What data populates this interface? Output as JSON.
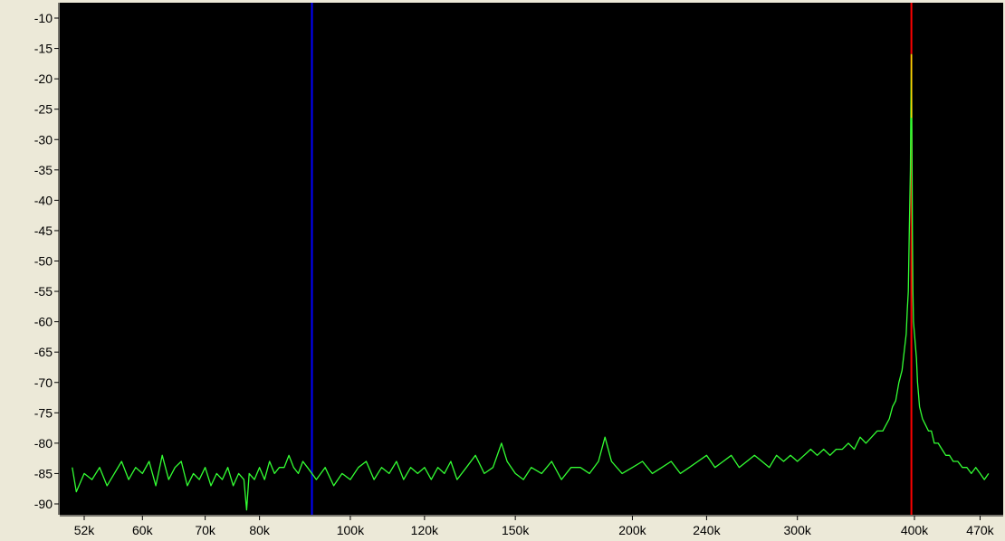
{
  "chart_data": {
    "type": "line",
    "title": "",
    "xlabel": "",
    "ylabel": "",
    "x_scale": "log",
    "xlim": [
      50000,
      480000
    ],
    "ylim": [
      -92,
      -7
    ],
    "grid": false,
    "x_ticks": [
      {
        "value": 52000,
        "label": "52k"
      },
      {
        "value": 60000,
        "label": "60k"
      },
      {
        "value": 70000,
        "label": "70k"
      },
      {
        "value": 80000,
        "label": "80k"
      },
      {
        "value": 100000,
        "label": "100k"
      },
      {
        "value": 120000,
        "label": "120k"
      },
      {
        "value": 150000,
        "label": "150k"
      },
      {
        "value": 200000,
        "label": "200k"
      },
      {
        "value": 240000,
        "label": "240k"
      },
      {
        "value": 300000,
        "label": "300k"
      },
      {
        "value": 400000,
        "label": "400k"
      },
      {
        "value": 470000,
        "label": "470k"
      }
    ],
    "y_ticks": [
      {
        "value": -10,
        "label": "-10"
      },
      {
        "value": -15,
        "label": "-15"
      },
      {
        "value": -20,
        "label": "-20"
      },
      {
        "value": -25,
        "label": "-25"
      },
      {
        "value": -30,
        "label": "-30"
      },
      {
        "value": -35,
        "label": "-35"
      },
      {
        "value": -40,
        "label": "-40"
      },
      {
        "value": -45,
        "label": "-45"
      },
      {
        "value": -50,
        "label": "-50"
      },
      {
        "value": -55,
        "label": "-55"
      },
      {
        "value": -60,
        "label": "-60"
      },
      {
        "value": -65,
        "label": "-65"
      },
      {
        "value": -70,
        "label": "-70"
      },
      {
        "value": -75,
        "label": "-75"
      },
      {
        "value": -80,
        "label": "-80"
      },
      {
        "value": -85,
        "label": "-85"
      },
      {
        "value": -90,
        "label": "-90"
      }
    ],
    "markers": [
      {
        "x": 91000,
        "color": "#0000FF"
      },
      {
        "x": 397000,
        "color": "#FF0000"
      }
    ],
    "series": [
      {
        "color": "#33FF33",
        "peak_color": "#FFD700",
        "x": [
          50500,
          51000,
          52000,
          53000,
          54000,
          55000,
          56000,
          57000,
          58000,
          59000,
          60000,
          61000,
          62000,
          63000,
          64000,
          65000,
          66000,
          67000,
          68000,
          69000,
          70000,
          71000,
          72000,
          73000,
          74000,
          75000,
          76000,
          77000,
          77500,
          78000,
          79000,
          80000,
          81000,
          82000,
          83000,
          84000,
          85000,
          86000,
          87000,
          88000,
          89000,
          90000,
          91000,
          92000,
          94000,
          96000,
          98000,
          100000,
          102000,
          104000,
          106000,
          108000,
          110000,
          112000,
          114000,
          116000,
          118000,
          120000,
          122000,
          124000,
          126000,
          128000,
          130000,
          133000,
          136000,
          139000,
          142000,
          145000,
          147000,
          150000,
          153000,
          156000,
          160000,
          164000,
          168000,
          172000,
          176000,
          180000,
          184000,
          187000,
          190000,
          195000,
          200000,
          205000,
          210000,
          215000,
          220000,
          225000,
          230000,
          235000,
          240000,
          245000,
          250000,
          255000,
          260000,
          265000,
          270000,
          275000,
          280000,
          285000,
          290000,
          295000,
          300000,
          305000,
          310000,
          315000,
          320000,
          325000,
          330000,
          335000,
          340000,
          345000,
          350000,
          355000,
          360000,
          365000,
          370000,
          373000,
          376000,
          379000,
          382000,
          385000,
          388000,
          390000,
          392000,
          393000,
          394000,
          395000,
          396000,
          396500,
          397000,
          397500,
          398000,
          398500,
          399000,
          400000,
          401000,
          402000,
          403000,
          405000,
          408000,
          411000,
          414000,
          417000,
          420000,
          424000,
          428000,
          432000,
          436000,
          440000,
          445000,
          450000,
          455000,
          460000,
          465000,
          470000,
          475000,
          480000
        ],
        "y": [
          -84,
          -88,
          -85,
          -86,
          -84,
          -87,
          -85,
          -83,
          -86,
          -84,
          -85,
          -83,
          -87,
          -82,
          -86,
          -84,
          -83,
          -87,
          -85,
          -86,
          -84,
          -87,
          -85,
          -86,
          -84,
          -87,
          -85,
          -86,
          -91,
          -85,
          -86,
          -84,
          -86,
          -83,
          -85,
          -84,
          -84,
          -82,
          -84,
          -85,
          -83,
          -84,
          -85,
          -86,
          -84,
          -87,
          -85,
          -86,
          -84,
          -83,
          -86,
          -84,
          -85,
          -83,
          -86,
          -84,
          -85,
          -84,
          -86,
          -84,
          -85,
          -83,
          -86,
          -84,
          -82,
          -85,
          -84,
          -80,
          -83,
          -85,
          -86,
          -84,
          -85,
          -83,
          -86,
          -84,
          -84,
          -85,
          -83,
          -79,
          -83,
          -85,
          -84,
          -83,
          -85,
          -84,
          -83,
          -85,
          -84,
          -83,
          -82,
          -84,
          -83,
          -82,
          -84,
          -83,
          -82,
          -83,
          -84,
          -82,
          -83,
          -82,
          -83,
          -82,
          -81,
          -82,
          -81,
          -82,
          -81,
          -81,
          -80,
          -81,
          -79,
          -80,
          -79,
          -78,
          -78,
          -77,
          -76,
          -74,
          -73,
          -70,
          -68,
          -65,
          -62,
          -58,
          -55,
          -45,
          -35,
          -25,
          -16,
          -30,
          -45,
          -55,
          -60,
          -62,
          -64,
          -66,
          -70,
          -74,
          -76,
          -77,
          -78,
          -78,
          -80,
          -80,
          -81,
          -82,
          -82,
          -83,
          -83,
          -84,
          -84,
          -85,
          -84,
          -85,
          -86,
          -85
        ]
      }
    ]
  }
}
